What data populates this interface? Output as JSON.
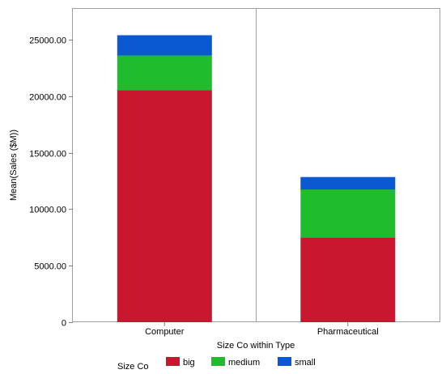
{
  "chart_data": {
    "type": "bar",
    "stacked": true,
    "categories": [
      "Computer",
      "Pharmaceutical"
    ],
    "series": [
      {
        "name": "big",
        "values": [
          20550,
          7500
        ],
        "color": "#c8172e"
      },
      {
        "name": "medium",
        "values": [
          3050,
          4250
        ],
        "color": "#1fbc2e"
      },
      {
        "name": "small",
        "values": [
          1800,
          1100
        ],
        "color": "#0a58d2"
      }
    ],
    "ylim": [
      0,
      27800
    ],
    "yticks": [
      0,
      5000,
      10000,
      15000,
      20000,
      25000
    ],
    "ytick_labels": [
      "0",
      "5000.00",
      "10000.00",
      "15000.00",
      "20000.00",
      "25000.00"
    ],
    "xlabel": "Size Co within Type",
    "ylabel": "Mean(Sales ($M))",
    "legend": {
      "title": "Size Co",
      "placement": "bottom-left"
    },
    "grid": false
  }
}
